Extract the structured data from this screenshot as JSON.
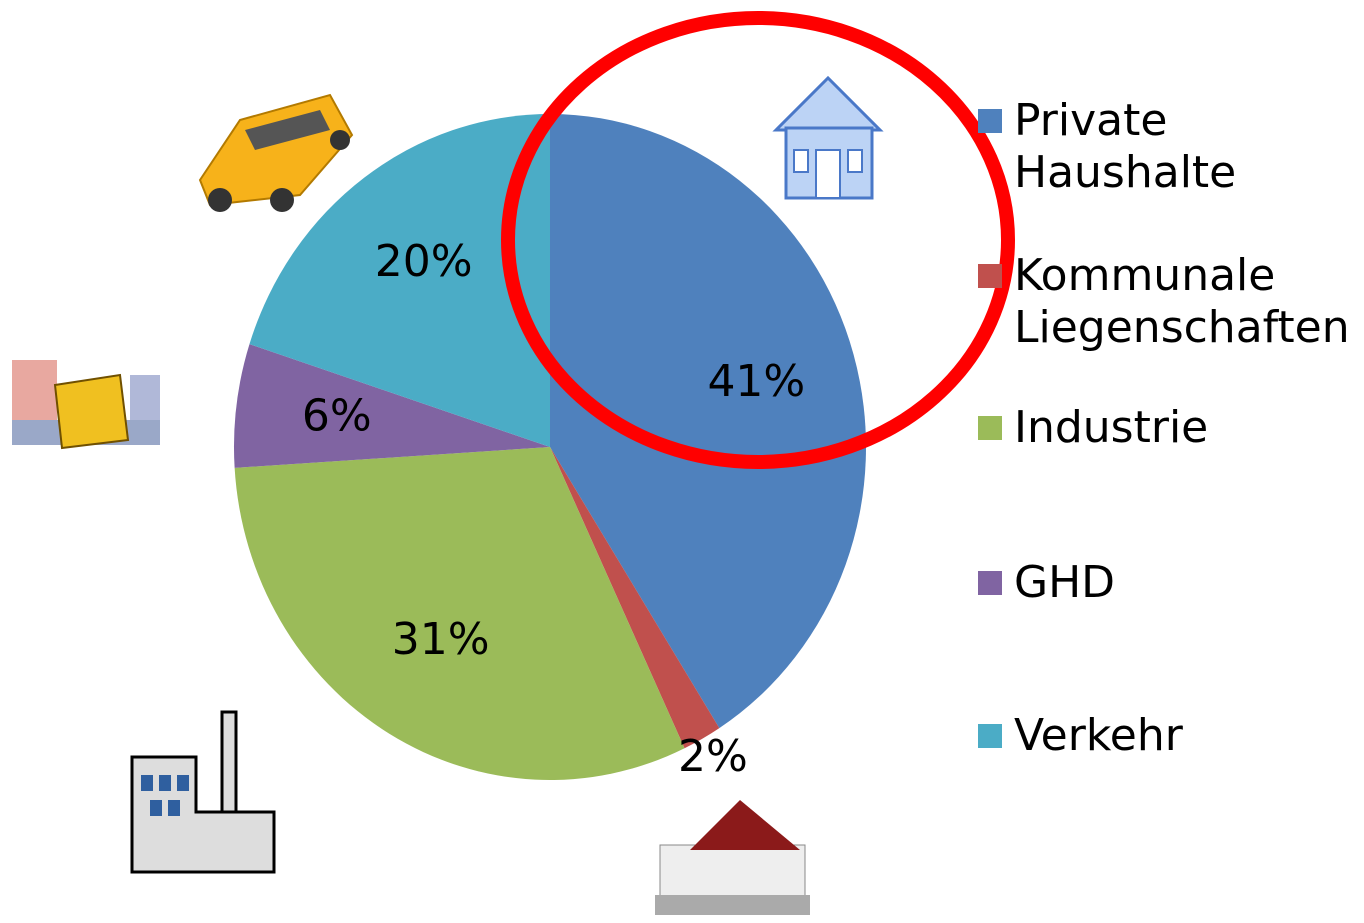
{
  "chart_data": {
    "type": "pie",
    "categories": [
      "Private Haushalte",
      "Kommunale Liegenschaften",
      "Industrie",
      "GHD",
      "Verkehr"
    ],
    "values": [
      41,
      2,
      31,
      6,
      20
    ],
    "value_labels": [
      "41%",
      "2%",
      "31%",
      "6%",
      "20%"
    ],
    "colors": [
      "#4f81bd",
      "#c0504d",
      "#9bbb59",
      "#8064a2",
      "#4bacc6"
    ],
    "legend": "right"
  }
}
